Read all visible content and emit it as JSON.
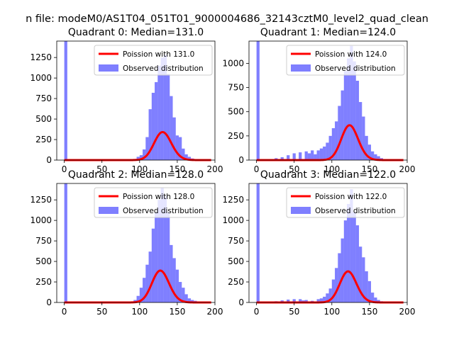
{
  "suptitle": "n file: modeM0/AS1T04_051T01_9000004686_32143cztM0_level2_quad_clean",
  "colors": {
    "hist": "#0000ff",
    "hist_alpha": 0.5,
    "curve": "#ff0000"
  },
  "chart_data": [
    {
      "type": "bar",
      "title": "Quadrant 0: Median=131.0",
      "xlabel": "",
      "ylabel": "",
      "xlim": [
        -10,
        200
      ],
      "ylim": [
        0,
        1450
      ],
      "xticks": [
        "0",
        "50",
        "100",
        "150",
        "200"
      ],
      "yticks": [
        "0",
        "250",
        "500",
        "750",
        "1000",
        "1250"
      ],
      "series": [
        {
          "name": "Poission with 131.0",
          "type": "line",
          "mean": 131.0
        },
        {
          "name": "Observed distribution",
          "type": "hist",
          "bin_width": 4,
          "bins": [
            [
              0,
              1450
            ],
            [
              96,
              40
            ],
            [
              100,
              60
            ],
            [
              104,
              130
            ],
            [
              108,
              280
            ],
            [
              112,
              620
            ],
            [
              116,
              820
            ],
            [
              120,
              950
            ],
            [
              124,
              1150
            ],
            [
              128,
              1250
            ],
            [
              132,
              1280
            ],
            [
              136,
              1050
            ],
            [
              140,
              780
            ],
            [
              144,
              520
            ],
            [
              148,
              300
            ],
            [
              152,
              280
            ],
            [
              156,
              140
            ],
            [
              160,
              70
            ],
            [
              164,
              40
            ],
            [
              168,
              20
            ],
            [
              172,
              10
            ],
            [
              176,
              5
            ]
          ]
        }
      ],
      "legend": "top-right"
    },
    {
      "type": "bar",
      "title": "Quadrant 1: Median=124.0",
      "xlabel": "",
      "ylabel": "",
      "xlim": [
        -10,
        200
      ],
      "ylim": [
        0,
        1230
      ],
      "xticks": [
        "0",
        "50",
        "100",
        "150",
        "200"
      ],
      "yticks": [
        "0",
        "250",
        "500",
        "750",
        "1000"
      ],
      "series": [
        {
          "name": "Poission with 124.0",
          "type": "line",
          "mean": 124.0
        },
        {
          "name": "Observed distribution",
          "type": "hist",
          "bin_width": 4,
          "bins": [
            [
              0,
              1230
            ],
            [
              16,
              10
            ],
            [
              24,
              20
            ],
            [
              32,
              30
            ],
            [
              40,
              50
            ],
            [
              48,
              70
            ],
            [
              56,
              80
            ],
            [
              64,
              90
            ],
            [
              68,
              70
            ],
            [
              72,
              100
            ],
            [
              76,
              60
            ],
            [
              80,
              100
            ],
            [
              84,
              120
            ],
            [
              88,
              140
            ],
            [
              92,
              180
            ],
            [
              96,
              250
            ],
            [
              100,
              330
            ],
            [
              104,
              400
            ],
            [
              108,
              560
            ],
            [
              112,
              720
            ],
            [
              116,
              920
            ],
            [
              120,
              1050
            ],
            [
              124,
              1180
            ],
            [
              128,
              1020
            ],
            [
              132,
              820
            ],
            [
              136,
              600
            ],
            [
              140,
              450
            ],
            [
              144,
              250
            ],
            [
              148,
              160
            ],
            [
              152,
              90
            ],
            [
              156,
              60
            ],
            [
              160,
              40
            ],
            [
              164,
              20
            ],
            [
              168,
              10
            ],
            [
              172,
              5
            ]
          ]
        }
      ],
      "legend": "top-right"
    },
    {
      "type": "bar",
      "title": "Quadrant 2: Median=128.0",
      "xlabel": "",
      "ylabel": "",
      "xlim": [
        -10,
        200
      ],
      "ylim": [
        0,
        1450
      ],
      "xticks": [
        "0",
        "50",
        "100",
        "150",
        "200"
      ],
      "yticks": [
        "0",
        "250",
        "500",
        "750",
        "1000",
        "1250"
      ],
      "series": [
        {
          "name": "Poission with 128.0",
          "type": "line",
          "mean": 128.0
        },
        {
          "name": "Observed distribution",
          "type": "hist",
          "bin_width": 4,
          "bins": [
            [
              0,
              1450
            ],
            [
              88,
              10
            ],
            [
              92,
              30
            ],
            [
              96,
              80
            ],
            [
              100,
              180
            ],
            [
              104,
              300
            ],
            [
              108,
              460
            ],
            [
              112,
              620
            ],
            [
              116,
              900
            ],
            [
              120,
              1100
            ],
            [
              124,
              1250
            ],
            [
              128,
              1400
            ],
            [
              132,
              1300
            ],
            [
              136,
              1100
            ],
            [
              140,
              700
            ],
            [
              144,
              540
            ],
            [
              148,
              400
            ],
            [
              152,
              250
            ],
            [
              156,
              180
            ],
            [
              160,
              100
            ],
            [
              164,
              50
            ],
            [
              168,
              30
            ],
            [
              172,
              20
            ],
            [
              176,
              10
            ]
          ]
        }
      ],
      "legend": "top-right"
    },
    {
      "type": "bar",
      "title": "Quadrant 3: Median=122.0",
      "xlabel": "",
      "ylabel": "",
      "xlim": [
        -10,
        200
      ],
      "ylim": [
        0,
        1450
      ],
      "xticks": [
        "0",
        "50",
        "100",
        "150",
        "200"
      ],
      "yticks": [
        "0",
        "250",
        "500",
        "750",
        "1000",
        "1250"
      ],
      "series": [
        {
          "name": "Poission with 122.0",
          "type": "line",
          "mean": 122.0
        },
        {
          "name": "Observed distribution",
          "type": "hist",
          "bin_width": 4,
          "bins": [
            [
              0,
              1450
            ],
            [
              16,
              10
            ],
            [
              24,
              15
            ],
            [
              32,
              25
            ],
            [
              40,
              35
            ],
            [
              48,
              40
            ],
            [
              56,
              40
            ],
            [
              60,
              25
            ],
            [
              64,
              30
            ],
            [
              72,
              20
            ],
            [
              80,
              40
            ],
            [
              84,
              50
            ],
            [
              88,
              70
            ],
            [
              92,
              110
            ],
            [
              96,
              170
            ],
            [
              100,
              280
            ],
            [
              104,
              420
            ],
            [
              108,
              600
            ],
            [
              112,
              780
            ],
            [
              116,
              1000
            ],
            [
              120,
              1200
            ],
            [
              124,
              1380
            ],
            [
              128,
              1100
            ],
            [
              132,
              940
            ],
            [
              136,
              680
            ],
            [
              140,
              550
            ],
            [
              144,
              380
            ],
            [
              148,
              260
            ],
            [
              152,
              120
            ],
            [
              156,
              60
            ],
            [
              160,
              30
            ],
            [
              164,
              15
            ],
            [
              168,
              5
            ]
          ]
        }
      ],
      "legend": "top-right"
    }
  ]
}
